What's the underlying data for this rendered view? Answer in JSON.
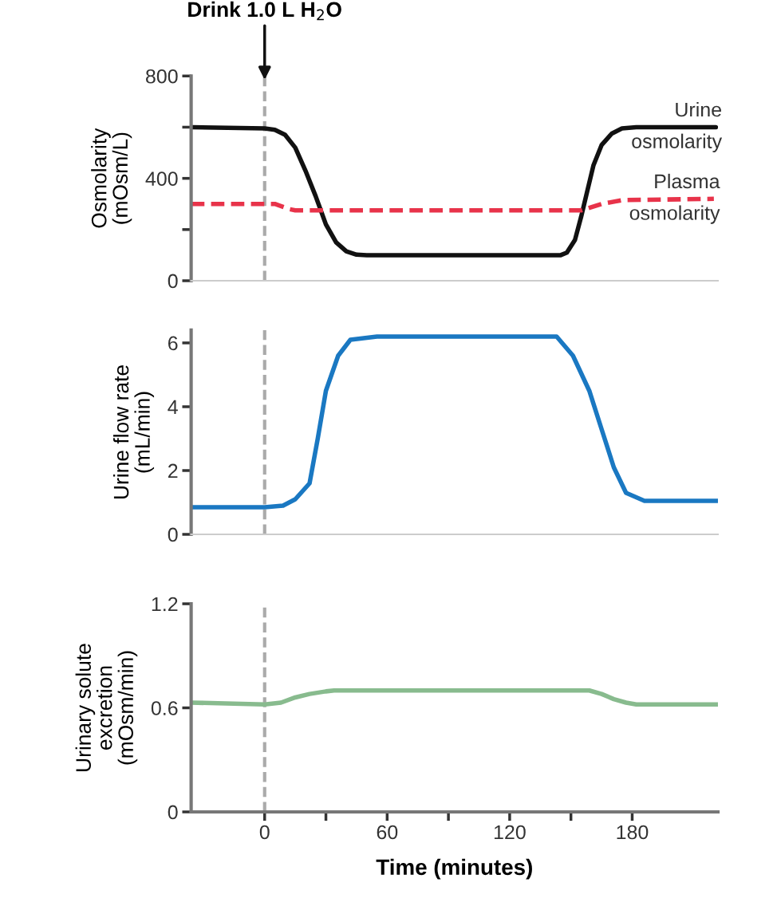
{
  "chart_data": [
    {
      "type": "line",
      "ylabel": "Osmolarity\n(mOsm/L)",
      "annotations": [
        {
          "text": "Drink 1.0 L H$_{2}$O",
          "x": 0,
          "y": 800
        }
      ],
      "xlim": [
        -36,
        222
      ],
      "ylim": [
        0,
        800
      ],
      "yticks": [
        0,
        {
          "value": 200,
          "label": null
        },
        400,
        {
          "value": 600,
          "label": null
        },
        800
      ],
      "tick_labels": "y",
      "legend": false,
      "grid": false,
      "ref_lines": [
        {
          "axis": "x",
          "value": 0,
          "label": null,
          "color": "#aaaaaa",
          "line_style": "dashed"
        }
      ],
      "series": [
        {
          "name": "Urine\nosmolarity",
          "color": "#111111",
          "line_style": "solid",
          "x": [
            -36,
            0,
            5,
            10,
            15,
            20,
            25,
            30,
            35,
            40,
            45,
            50,
            145,
            148,
            152,
            155,
            158,
            161,
            165,
            170,
            175,
            182,
            221
          ],
          "values": [
            600,
            595,
            590,
            570,
            520,
            430,
            330,
            220,
            150,
            115,
            102,
            100,
            100,
            110,
            160,
            250,
            350,
            450,
            530,
            575,
            595,
            600,
            600
          ]
        },
        {
          "name": "Plasma\nosmolarity",
          "color": "#e8334a",
          "line_style": "dashed",
          "x": [
            -36,
            0,
            5,
            12,
            15,
            155,
            165,
            175,
            220
          ],
          "values": [
            300,
            300,
            300,
            280,
            275,
            275,
            300,
            315,
            320
          ]
        }
      ]
    },
    {
      "type": "line",
      "ylabel": "Urine flow rate\n(mL/min)",
      "xlim": [
        -36,
        222
      ],
      "ylim": [
        0,
        6.4
      ],
      "yticks": [
        0,
        2,
        4,
        6
      ],
      "tick_labels": "y",
      "legend": false,
      "grid": false,
      "ref_lines": [
        {
          "axis": "x",
          "value": 0,
          "label": null,
          "color": "#aaaaaa",
          "line_style": "dashed"
        }
      ],
      "series": [
        {
          "color": "#1a78c2",
          "line_style": "solid",
          "x": [
            -36,
            0,
            9,
            15,
            22,
            26,
            30,
            36,
            42,
            55,
            143,
            151,
            159,
            165,
            171,
            177,
            186,
            222
          ],
          "values": [
            0.85,
            0.85,
            0.9,
            1.1,
            1.6,
            3.0,
            4.5,
            5.6,
            6.1,
            6.2,
            6.2,
            5.6,
            4.5,
            3.3,
            2.1,
            1.3,
            1.05,
            1.05
          ]
        }
      ]
    },
    {
      "type": "line",
      "ylabel": "Urinary solute\nexcretion\n(mOsm/min)",
      "xlabel": "Time (minutes)",
      "xlim": [
        -36,
        222
      ],
      "xticks": [
        0,
        {
          "value": 30,
          "label": null
        },
        60,
        {
          "value": 90,
          "label": null
        },
        120,
        {
          "value": 150,
          "label": null
        },
        180
      ],
      "ylim": [
        0,
        1.2
      ],
      "yticks": [
        0,
        0.6,
        1.2
      ],
      "legend": false,
      "grid": false,
      "ref_lines": [
        {
          "axis": "x",
          "value": 0,
          "label": null,
          "color": "#aaaaaa",
          "line_style": "dashed"
        }
      ],
      "series": [
        {
          "color": "#88bb8e",
          "line_style": "solid",
          "x": [
            -36,
            0,
            8,
            15,
            22,
            30,
            34,
            159,
            165,
            171,
            177,
            182,
            222
          ],
          "values": [
            0.63,
            0.62,
            0.63,
            0.66,
            0.68,
            0.695,
            0.7,
            0.7,
            0.68,
            0.65,
            0.63,
            0.62,
            0.62
          ]
        }
      ]
    }
  ]
}
